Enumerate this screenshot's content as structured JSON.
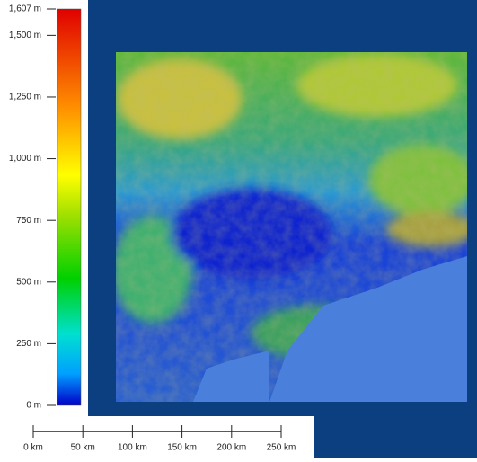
{
  "legend": {
    "ticks": [
      {
        "value": 1607,
        "label": "1,607 m"
      },
      {
        "value": 1500,
        "label": "1,500 m"
      },
      {
        "value": 1250,
        "label": "1,250 m"
      },
      {
        "value": 1000,
        "label": "1,000 m"
      },
      {
        "value": 750,
        "label": "750 m"
      },
      {
        "value": 500,
        "label": "500 m"
      },
      {
        "value": 250,
        "label": "250 m"
      },
      {
        "value": 0,
        "label": "0 m"
      }
    ]
  },
  "scale_bar": {
    "ticks": [
      {
        "value": 0,
        "label": "0 km"
      },
      {
        "value": 50,
        "label": "50 km"
      },
      {
        "value": 100,
        "label": "100 km"
      },
      {
        "value": 150,
        "label": "150 km"
      },
      {
        "value": 200,
        "label": "200 km"
      },
      {
        "value": 250,
        "label": "250 km"
      }
    ]
  }
}
